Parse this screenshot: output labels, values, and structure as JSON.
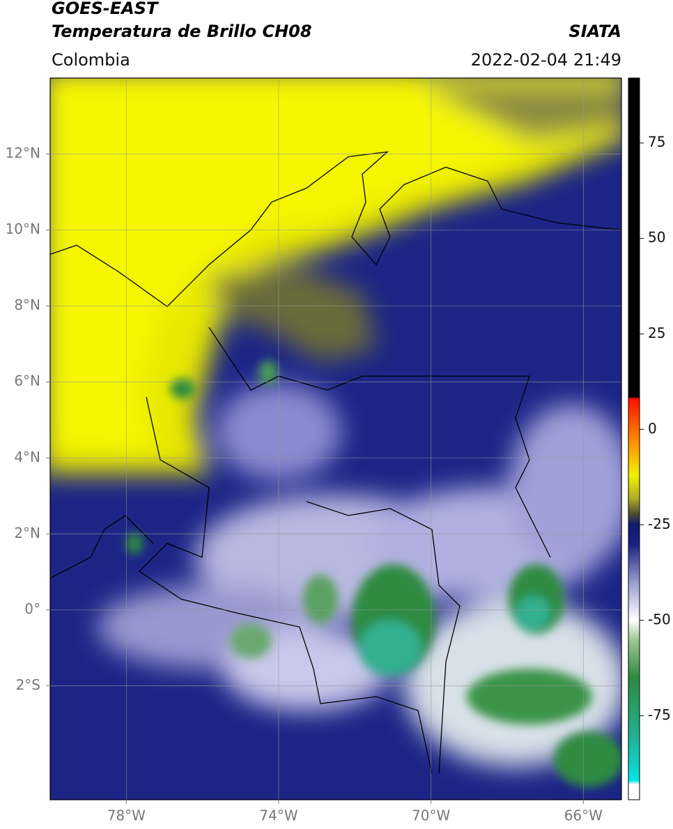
{
  "chart_data": {
    "type": "map",
    "title": "GOES-EAST",
    "subtitle": "Temperatura de Brillo CH08",
    "source": "SIATA",
    "region": "Colombia",
    "datetime": "2022-02-04 21:49",
    "xlim": [
      -80,
      -65
    ],
    "ylim": [
      -5,
      14
    ],
    "xticks": [
      {
        "value": -78,
        "label": "78°W"
      },
      {
        "value": -74,
        "label": "74°W"
      },
      {
        "value": -70,
        "label": "70°W"
      },
      {
        "value": -66,
        "label": "66°W"
      }
    ],
    "yticks": [
      {
        "value": 12,
        "label": "12°N"
      },
      {
        "value": 10,
        "label": "10°N"
      },
      {
        "value": 8,
        "label": "8°N"
      },
      {
        "value": 6,
        "label": "6°N"
      },
      {
        "value": 4,
        "label": "4°N"
      },
      {
        "value": 2,
        "label": "2°N"
      },
      {
        "value": 0,
        "label": "0°"
      },
      {
        "value": -2,
        "label": "2°S"
      }
    ],
    "grid": true,
    "colorbar": {
      "lim": [
        -97,
        92
      ],
      "ticks": [
        75,
        50,
        25,
        0,
        -25,
        -50,
        -75
      ],
      "stops": [
        {
          "value": -97,
          "color": "#ffffff"
        },
        {
          "value": -93,
          "color": "#ffffff"
        },
        {
          "value": -92,
          "color": "#00e8e8"
        },
        {
          "value": -88,
          "color": "#10d0c8"
        },
        {
          "value": -80,
          "color": "#20b090"
        },
        {
          "value": -65,
          "color": "#2e8b40"
        },
        {
          "value": -55,
          "color": "#a0c894"
        },
        {
          "value": -50,
          "color": "#ffffff"
        },
        {
          "value": -40,
          "color": "#9a9ad0"
        },
        {
          "value": -30,
          "color": "#1a2080"
        },
        {
          "value": -25,
          "color": "#101870"
        },
        {
          "value": -22,
          "color": "#505030"
        },
        {
          "value": -18,
          "color": "#b0b020"
        },
        {
          "value": -12,
          "color": "#f0f000"
        },
        {
          "value": -5,
          "color": "#ffa000"
        },
        {
          "value": 8,
          "color": "#ff1000"
        },
        {
          "value": 8.5,
          "color": "#000000"
        },
        {
          "value": 92,
          "color": "#000000"
        }
      ]
    }
  }
}
